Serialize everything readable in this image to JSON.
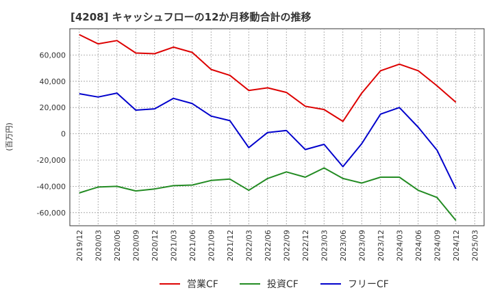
{
  "chart_data": {
    "type": "line",
    "title": "[4208]  キャッシュフローの12か月移動合計の推移",
    "ylabel": "(百万円)",
    "xlabel": "",
    "ylim": [
      -70000,
      80000
    ],
    "yticks": [
      -60000,
      -40000,
      -20000,
      0,
      20000,
      40000,
      60000
    ],
    "ytick_labels": [
      "-60,000",
      "-40,000",
      "-20,000",
      "0",
      "20,000",
      "40,000",
      "60,000"
    ],
    "xtick_labels": [
      "2019/12",
      "2020/03",
      "2020/06",
      "2020/09",
      "2020/12",
      "2021/03",
      "2021/06",
      "2021/09",
      "2021/12",
      "2022/03",
      "2022/06",
      "2022/09",
      "2022/12",
      "2023/03",
      "2023/06",
      "2023/09",
      "2023/12",
      "2024/03",
      "2024/06",
      "2024/09",
      "2024/12",
      "2025/03"
    ],
    "x": [
      "2019/12",
      "2020/03",
      "2020/06",
      "2020/09",
      "2020/12",
      "2021/03",
      "2021/06",
      "2021/09",
      "2021/12",
      "2022/03",
      "2022/06",
      "2022/09",
      "2022/12",
      "2023/03",
      "2023/06",
      "2023/09",
      "2023/12",
      "2024/03",
      "2024/06",
      "2024/09",
      "2024/12"
    ],
    "series": [
      {
        "name": "営業CF",
        "color": "#dd0000",
        "values": [
          75500,
          68500,
          71000,
          61500,
          61000,
          66000,
          62000,
          49000,
          44500,
          33000,
          35000,
          31500,
          21000,
          18500,
          9500,
          31000,
          48000,
          53000,
          48000,
          36500,
          24000
        ]
      },
      {
        "name": "投資CF",
        "color": "#228b22",
        "values": [
          -45000,
          -40500,
          -40000,
          -43500,
          -42000,
          -39500,
          -39000,
          -35500,
          -34500,
          -43000,
          -34000,
          -29000,
          -33000,
          -26000,
          -34000,
          -37500,
          -33000,
          -33000,
          -43000,
          -48500,
          -66000
        ]
      },
      {
        "name": "フリーCF",
        "color": "#0000cc",
        "values": [
          30500,
          28000,
          31000,
          18000,
          19000,
          27000,
          23000,
          13500,
          10000,
          -10500,
          1000,
          2500,
          -12000,
          -8000,
          -25000,
          -7500,
          15000,
          20000,
          5000,
          -12500,
          -42000
        ]
      }
    ],
    "legend": {
      "position": "bottom"
    },
    "grid": true
  }
}
